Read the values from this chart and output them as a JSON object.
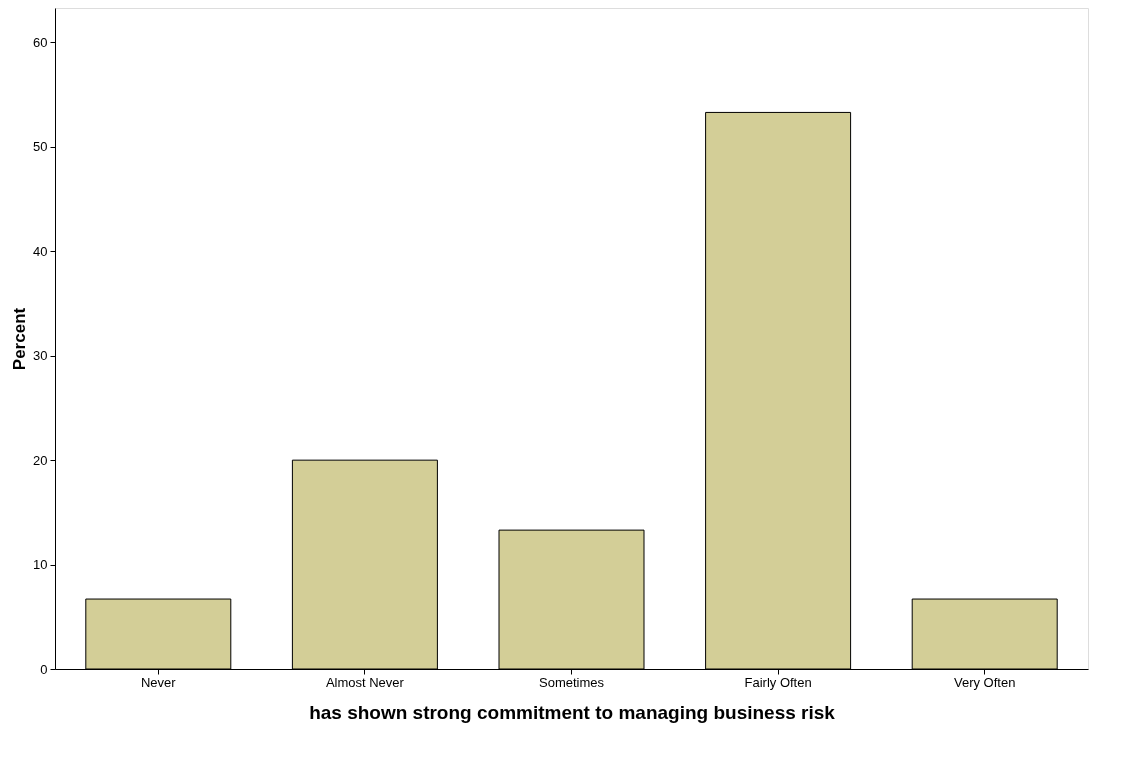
{
  "chart_data": {
    "type": "bar",
    "xlabel": "has shown strong commitment to managing business risk",
    "ylabel": "Percent",
    "categories": [
      "Never",
      "Almost Never",
      "Sometimes",
      "Fairly Often",
      "Very Often"
    ],
    "values": [
      6.7,
      20,
      13.3,
      53.3,
      6.7
    ],
    "color": "#d3ce97",
    "ylim": [
      0,
      63.3
    ],
    "yticks": [
      0,
      10,
      20,
      30,
      40,
      50,
      60
    ],
    "grid": false
  }
}
